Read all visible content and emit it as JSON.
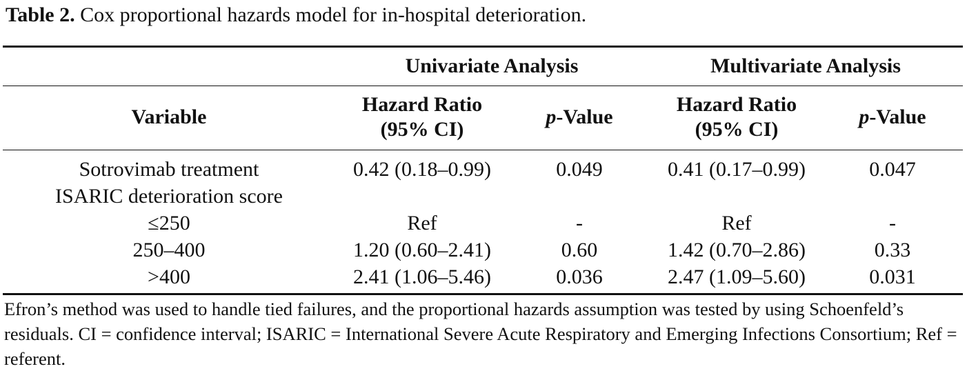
{
  "caption": {
    "label": "Table 2.",
    "text": " Cox proportional hazards model for in-hospital deterioration."
  },
  "table": {
    "group_headers": {
      "univariate": "Univariate Analysis",
      "multivariate": "Multivariate Analysis"
    },
    "columns": {
      "variable": "Variable",
      "hr_line1": "Hazard Ratio",
      "hr_line2": "(95% CI)",
      "p_italic": "p",
      "p_rest": "-Value"
    },
    "rows": [
      {
        "variable": "Sotrovimab treatment",
        "uni_hr": "0.42 (0.18–0.99)",
        "uni_p": "0.049",
        "multi_hr": "0.41 (0.17–0.99)",
        "multi_p": "0.047"
      },
      {
        "variable": "ISARIC deterioration score",
        "uni_hr": "",
        "uni_p": "",
        "multi_hr": "",
        "multi_p": ""
      },
      {
        "variable": "≤250",
        "uni_hr": "Ref",
        "uni_p": "-",
        "multi_hr": "Ref",
        "multi_p": "-"
      },
      {
        "variable": "250–400",
        "uni_hr": "1.20 (0.60–2.41)",
        "uni_p": "0.60",
        "multi_hr": "1.42 (0.70–2.86)",
        "multi_p": "0.33"
      },
      {
        "variable": ">400",
        "uni_hr": "2.41 (1.06–5.46)",
        "uni_p": "0.036",
        "multi_hr": "2.47 (1.09–5.60)",
        "multi_p": "0.031"
      }
    ]
  },
  "footnote": "Efron’s method was used to handle tied failures, and the proportional hazards assumption was tested by using Schoenfeld’s residuals. CI = confidence interval; ISARIC = International Severe Acute Respiratory and Emerging Infections Consortium; Ref = referent."
}
